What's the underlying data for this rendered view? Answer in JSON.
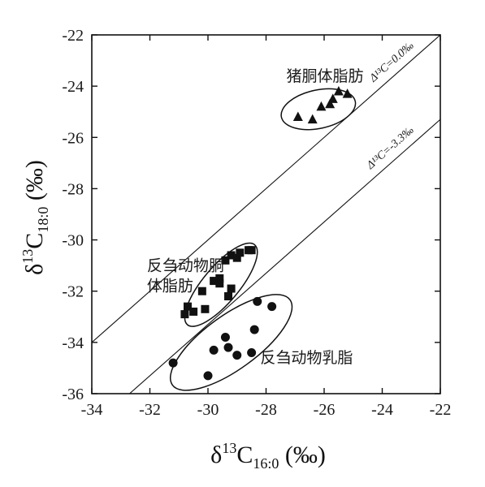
{
  "chart_data": {
    "type": "scatter",
    "xlim": [
      -34,
      -22
    ],
    "ylim": [
      -36,
      -22
    ],
    "xticks": [
      -34,
      -32,
      -30,
      -28,
      -26,
      -24,
      -22
    ],
    "yticks": [
      -36,
      -34,
      -32,
      -30,
      -28,
      -26,
      -24,
      -22
    ],
    "x_ticklabels": [
      "-34",
      "-32",
      "-30",
      "-28",
      "-26",
      "-24",
      "-22"
    ],
    "y_ticklabels": [
      "-36",
      "-34",
      "-32",
      "-30",
      "-28",
      "-26",
      "-24",
      "-22"
    ],
    "xlabel": {
      "delta": "δ",
      "sup": "13",
      "main": "C",
      "sub": "16:0",
      "unit": " (‰)"
    },
    "ylabel": {
      "delta": "δ",
      "sup": "13",
      "main": "C",
      "sub": "18:0",
      "unit": " (‰)"
    },
    "grid": false,
    "series": [
      {
        "name": "猪胴体脂肪",
        "marker": "triangle",
        "points": [
          [
            -26.9,
            -25.2
          ],
          [
            -26.4,
            -25.3
          ],
          [
            -26.1,
            -24.8
          ],
          [
            -25.8,
            -24.7
          ],
          [
            -25.7,
            -24.5
          ],
          [
            -25.5,
            -24.2
          ],
          [
            -25.2,
            -24.3
          ]
        ]
      },
      {
        "name": "反刍动物胴体脂肪",
        "marker": "square",
        "points": [
          [
            -30.8,
            -32.9
          ],
          [
            -30.7,
            -32.6
          ],
          [
            -30.5,
            -32.8
          ],
          [
            -30.2,
            -32.0
          ],
          [
            -30.1,
            -32.7
          ],
          [
            -29.8,
            -31.6
          ],
          [
            -29.6,
            -31.5
          ],
          [
            -29.6,
            -31.7
          ],
          [
            -29.4,
            -30.8
          ],
          [
            -29.3,
            -32.2
          ],
          [
            -29.2,
            -30.6
          ],
          [
            -29.2,
            -31.9
          ],
          [
            -29.0,
            -30.7
          ],
          [
            -28.9,
            -30.5
          ],
          [
            -28.6,
            -30.4
          ],
          [
            -28.5,
            -30.4
          ]
        ]
      },
      {
        "name": "反刍动物乳脂",
        "marker": "circle",
        "points": [
          [
            -31.2,
            -34.8
          ],
          [
            -30.0,
            -35.3
          ],
          [
            -29.8,
            -34.3
          ],
          [
            -29.4,
            -33.8
          ],
          [
            -29.3,
            -34.2
          ],
          [
            -29.0,
            -34.5
          ],
          [
            -28.5,
            -34.4
          ],
          [
            -28.4,
            -33.5
          ],
          [
            -28.3,
            -32.4
          ],
          [
            -27.8,
            -32.6
          ]
        ]
      }
    ],
    "ellipses": [
      {
        "series": "猪胴体脂肪",
        "cx": -26.2,
        "cy": -24.9,
        "rx": 1.3,
        "ry": 0.75,
        "angle": -12
      },
      {
        "series": "反刍动物胴体脂肪",
        "cx": -29.55,
        "cy": -31.75,
        "rx": 1.8,
        "ry": 0.7,
        "angle": -50
      },
      {
        "series": "反刍动物乳脂",
        "cx": -29.2,
        "cy": -34.0,
        "rx": 2.5,
        "ry": 1.05,
        "angle": -36
      }
    ],
    "reference_lines": [
      {
        "label": "Δ¹³C=0.0‰",
        "offset": 0.0
      },
      {
        "label": "Δ¹³C=-3.3‰",
        "offset": -3.3
      }
    ],
    "annotations": [
      {
        "text": "猪胴体脂肪",
        "x": -27.3,
        "y": -23.8
      },
      {
        "text": "反刍动物胴",
        "x": -32.1,
        "y": -31.2
      },
      {
        "text": "体脂肪",
        "x": -32.1,
        "y": -32.0
      },
      {
        "text": "反刍动物乳脂",
        "x": -28.2,
        "y": -34.8
      }
    ]
  }
}
